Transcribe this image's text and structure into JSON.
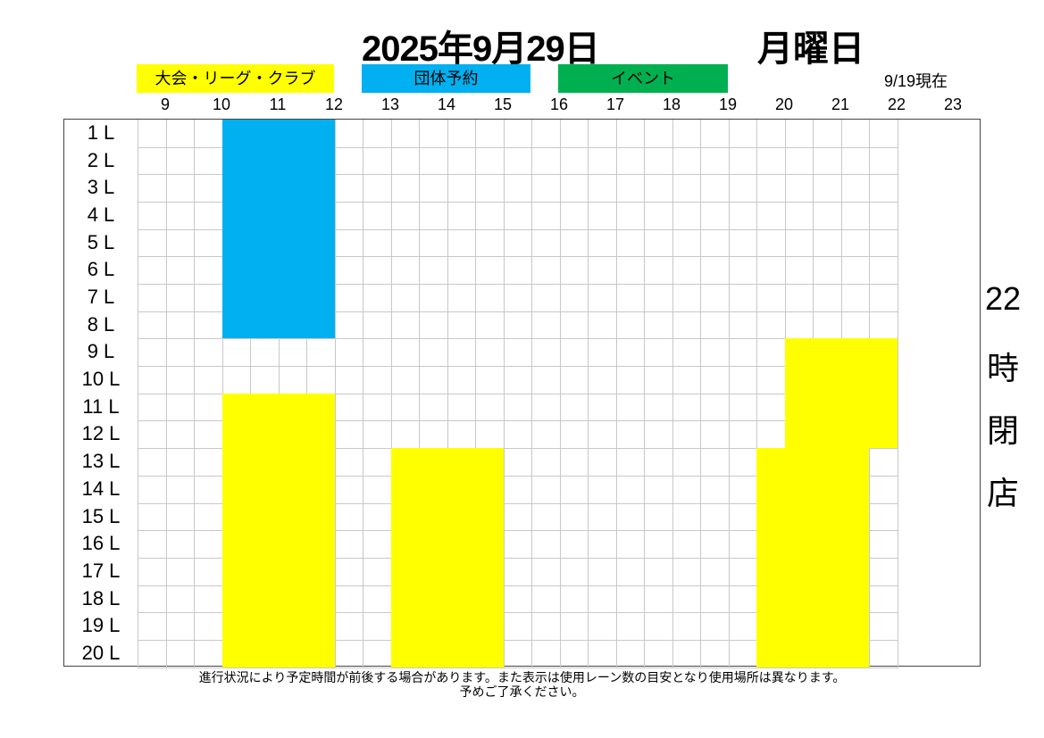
{
  "header": {
    "title": "2025年9月29日",
    "weekday": "月曜日",
    "as_of": "9/19現在"
  },
  "legend": [
    {
      "label": "大会・リーグ・クラブ",
      "color": "#ffff00",
      "type": "tournament"
    },
    {
      "label": "団体予約",
      "color": "#00b0f0",
      "type": "group"
    },
    {
      "label": "イベント",
      "color": "#00b050",
      "type": "event"
    }
  ],
  "hours": [
    "9",
    "10",
    "11",
    "12",
    "13",
    "14",
    "15",
    "16",
    "17",
    "18",
    "19",
    "20",
    "21",
    "22",
    "23"
  ],
  "lanes": [
    "1 L",
    "2 L",
    "3 L",
    "4 L",
    "5 L",
    "6 L",
    "7 L",
    "8 L",
    "9 L",
    "10 L",
    "11 L",
    "12 L",
    "13 L",
    "14 L",
    "15 L",
    "16 L",
    "17 L",
    "18 L",
    "19 L",
    "20 L"
  ],
  "schedule_start": 8.5,
  "schedule_end": 22,
  "bookings": [
    {
      "type": "group",
      "lanes": [
        1,
        8
      ],
      "start": 10,
      "end": 12
    },
    {
      "type": "tournament",
      "lanes": [
        11,
        20
      ],
      "start": 10,
      "end": 12
    },
    {
      "type": "tournament",
      "lanes": [
        13,
        20
      ],
      "start": 13,
      "end": 15
    },
    {
      "type": "tournament",
      "lanes": [
        9,
        12
      ],
      "start": 20,
      "end": 22
    },
    {
      "type": "tournament",
      "lanes": [
        13,
        20
      ],
      "start": 19.5,
      "end": 21.5
    }
  ],
  "closing_notice": [
    "22",
    "時",
    "閉",
    "店"
  ],
  "footer": {
    "line1": "進行状況により予定時間が前後する場合があります。また表示は使用レーン数の目安となり使用場所は異なります。",
    "line2": "予めご了承ください。"
  }
}
